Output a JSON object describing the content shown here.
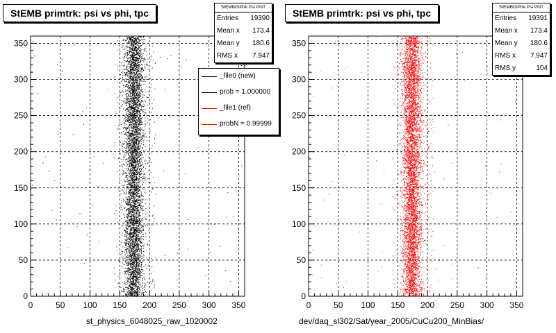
{
  "chart_data": [
    {
      "type": "scatter",
      "title": "StEMB primtrk: psi vs phi, tpc",
      "xlabel": "st_physics_6048025_raw_1020002",
      "ylabel": "",
      "xlim": [
        0,
        360
      ],
      "ylim": [
        0,
        360
      ],
      "xticks": [
        0,
        50,
        100,
        150,
        200,
        250,
        300,
        350
      ],
      "yticks": [
        0,
        50,
        100,
        150,
        200,
        250,
        300,
        350
      ],
      "grid": true,
      "color": "#000000",
      "stats": {
        "name": "StEMBGlPtrk Psi PhiT",
        "rows": [
          {
            "label": "Entries",
            "value": "19390"
          },
          {
            "label": "Mean x",
            "value": "173.4"
          },
          {
            "label": "Mean y",
            "value": "180.6"
          },
          {
            "label": "RMS x",
            "value": "7.947"
          }
        ]
      },
      "legend": {
        "placement": "top-right",
        "entries": [
          {
            "label": "_file0 (new)",
            "color": "#000000"
          },
          {
            "label": "prob = 1.000000",
            "color": "#000000"
          },
          {
            "label": "_file1 (ref)",
            "color": "#ff0000"
          },
          {
            "label": "probN = 0.99999",
            "color": "#ff0000"
          }
        ]
      },
      "distribution": {
        "x_center": 173.4,
        "x_rms": 7.947,
        "y_range": [
          0,
          360
        ],
        "points_drawn": 6000
      }
    },
    {
      "type": "scatter",
      "title": "StEMB primtrk: psi vs phi, tpc",
      "xlabel": "dev/daq_sl302/Sat/year_2005/CuCu200_MinBias/",
      "ylabel": "",
      "xlim": [
        0,
        360
      ],
      "ylim": [
        0,
        360
      ],
      "xticks": [
        0,
        50,
        100,
        150,
        200,
        250,
        300,
        350
      ],
      "yticks": [
        0,
        50,
        100,
        150,
        200,
        250,
        300,
        350
      ],
      "grid": true,
      "color": "#ff0000",
      "stats": {
        "name": "StEMBGlPtrk Psi PhiT",
        "rows": [
          {
            "label": "Entries",
            "value": "19391"
          },
          {
            "label": "Mean x",
            "value": "173.4"
          },
          {
            "label": "Mean y",
            "value": "180.6"
          },
          {
            "label": "RMS x",
            "value": "7.947"
          },
          {
            "label": "RMS y",
            "value": "104"
          }
        ]
      },
      "distribution": {
        "x_center": 173.4,
        "x_rms": 7.947,
        "y_range": [
          0,
          360
        ],
        "points_drawn": 6000
      }
    }
  ]
}
